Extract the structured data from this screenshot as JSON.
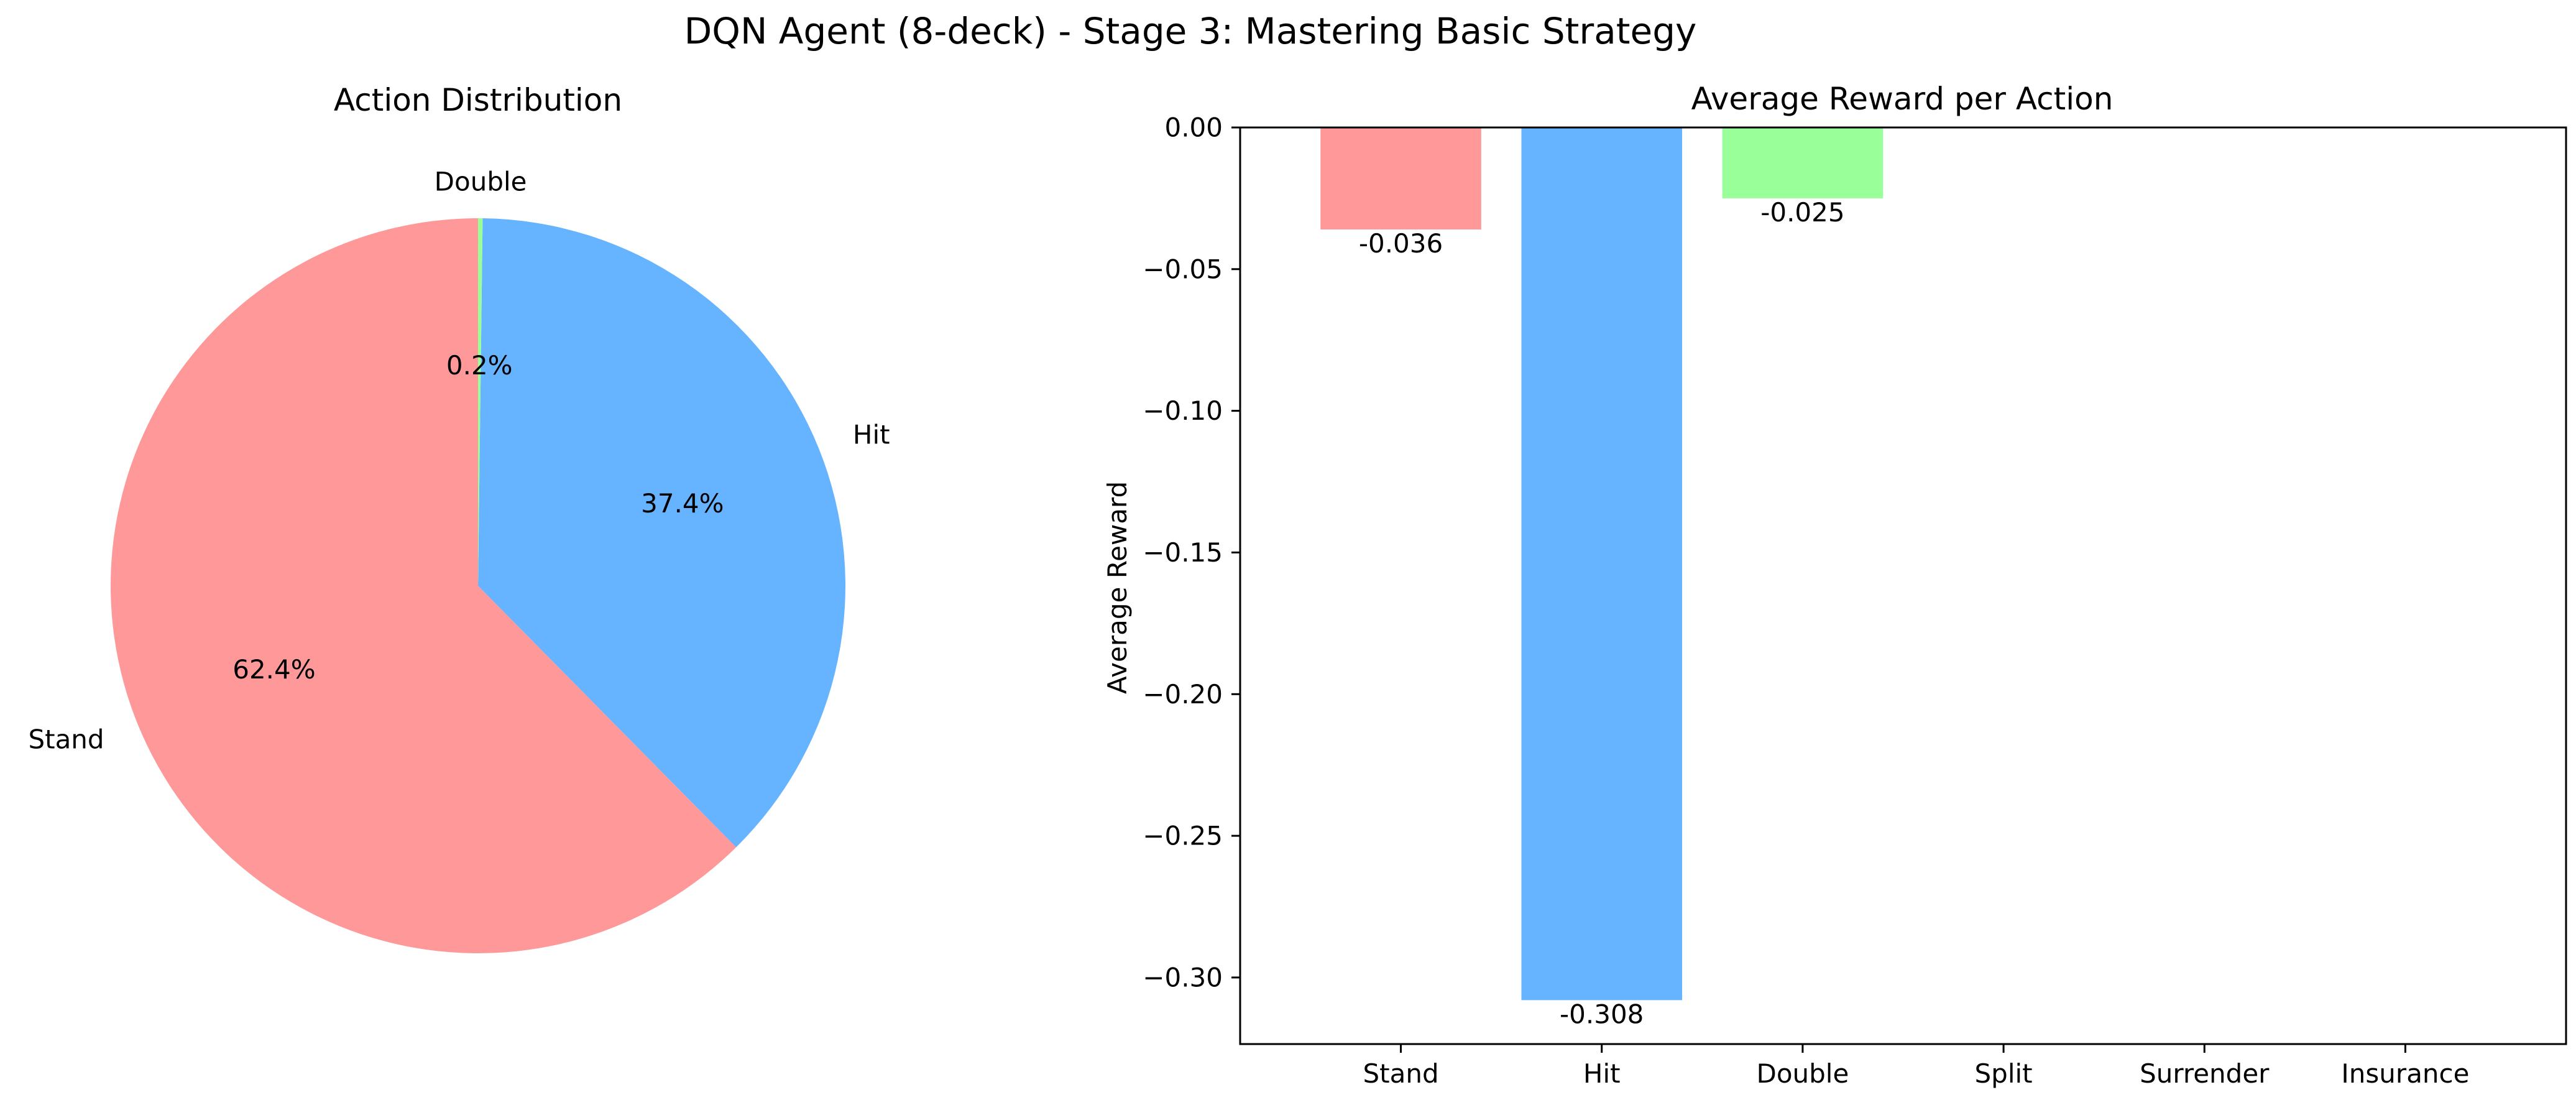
{
  "figure": {
    "title": "DQN Agent (8-deck) - Stage 3: Mastering Basic Strategy"
  },
  "colors": {
    "stand": "#ff9999",
    "hit": "#66b3ff",
    "double": "#99ff99"
  },
  "chart_data": [
    {
      "type": "pie",
      "title": "Action Distribution",
      "start_angle_deg": 90,
      "direction": "counterclockwise",
      "slices": [
        {
          "label": "Stand",
          "value": 62.4,
          "pct_label": "62.4%",
          "color": "#ff9999"
        },
        {
          "label": "Hit",
          "value": 37.4,
          "pct_label": "37.4%",
          "color": "#66b3ff"
        },
        {
          "label": "Double",
          "value": 0.2,
          "pct_label": "0.2%",
          "color": "#99ff99"
        }
      ]
    },
    {
      "type": "bar",
      "title": "Average Reward per Action",
      "ylabel": "Average Reward",
      "xlabel": "",
      "categories": [
        "Stand",
        "Hit",
        "Double",
        "Split",
        "Surrender",
        "Insurance"
      ],
      "values": [
        -0.036,
        -0.308,
        -0.025,
        null,
        null,
        null
      ],
      "value_labels": [
        "-0.036",
        "-0.308",
        "-0.025",
        "",
        "",
        ""
      ],
      "bar_colors": [
        "#ff9999",
        "#66b3ff",
        "#99ff99",
        "",
        "",
        ""
      ],
      "ylim": [
        -0.3235,
        0.0
      ],
      "yticks": [
        0.0,
        -0.05,
        -0.1,
        -0.15,
        -0.2,
        -0.25,
        -0.3
      ],
      "ytick_labels": [
        "0.00",
        "−0.05",
        "−0.10",
        "−0.15",
        "−0.20",
        "−0.25",
        "−0.30"
      ],
      "grid": false
    }
  ]
}
